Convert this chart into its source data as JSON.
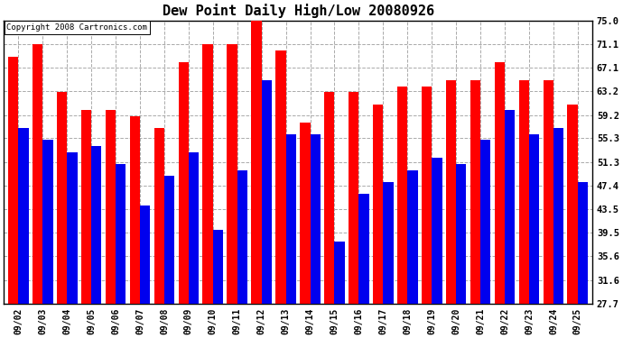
{
  "title": "Dew Point Daily High/Low 20080926",
  "copyright": "Copyright 2008 Cartronics.com",
  "dates": [
    "09/02",
    "09/03",
    "09/04",
    "09/05",
    "09/06",
    "09/07",
    "09/08",
    "09/09",
    "09/10",
    "09/11",
    "09/12",
    "09/13",
    "09/14",
    "09/15",
    "09/16",
    "09/17",
    "09/18",
    "09/19",
    "09/20",
    "09/21",
    "09/22",
    "09/23",
    "09/24",
    "09/25"
  ],
  "highs": [
    69,
    71,
    63,
    60,
    60,
    59,
    57,
    68,
    71,
    71,
    76,
    70,
    58,
    63,
    63,
    61,
    64,
    64,
    65,
    65,
    68,
    65,
    65,
    61
  ],
  "lows": [
    57,
    55,
    53,
    54,
    51,
    44,
    49,
    53,
    40,
    50,
    65,
    56,
    56,
    38,
    46,
    48,
    50,
    52,
    51,
    55,
    60,
    56,
    57,
    48
  ],
  "high_color": "#ff0000",
  "low_color": "#0000ee",
  "bg_color": "#ffffff",
  "plot_bg_color": "#ffffff",
  "grid_color": "#aaaaaa",
  "yticks": [
    27.7,
    31.6,
    35.6,
    39.5,
    43.5,
    47.4,
    51.3,
    55.3,
    59.2,
    63.2,
    67.1,
    71.1,
    75.0
  ],
  "ymin": 27.7,
  "ymax": 75.0,
  "bar_width": 0.42,
  "title_fontsize": 11,
  "tick_fontsize": 7,
  "ytick_fontsize": 7.5,
  "copyright_fontsize": 6.5
}
